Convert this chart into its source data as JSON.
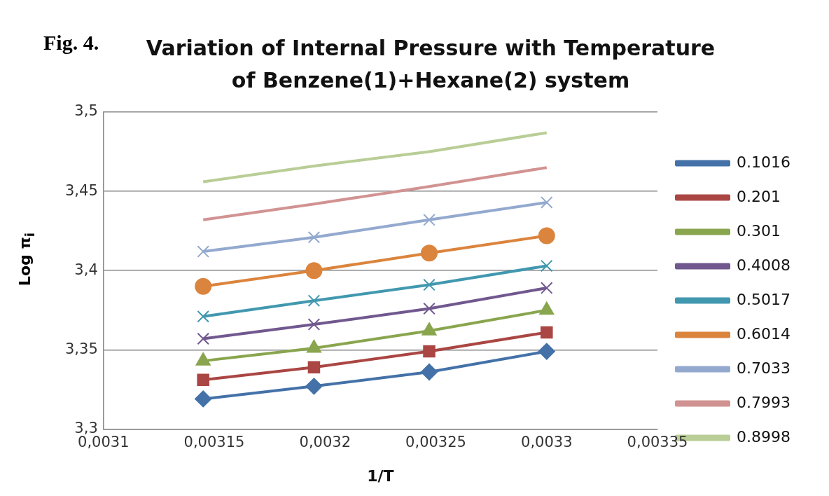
{
  "chart_data": {
    "type": "line",
    "title": "Variation of Internal  Pressure with Temperature of Benzene(1)+Hexane(2) system",
    "annotations": [
      "Fig. 4."
    ],
    "xlabel": "1/T",
    "ylabel": "Log π$_{i}$",
    "x": [
      0.003145,
      0.003195,
      0.003247,
      0.0033
    ],
    "xlim": [
      0.0031,
      0.00335
    ],
    "xticks": [
      {
        "value": 0.0031,
        "label": "0,0031"
      },
      {
        "value": 0.00315,
        "label": "0,00315"
      },
      {
        "value": 0.0032,
        "label": "0,0032"
      },
      {
        "value": 0.00325,
        "label": "0,00325"
      },
      {
        "value": 0.0033,
        "label": "0,0033"
      },
      {
        "value": 0.00335,
        "label": "0,00335"
      }
    ],
    "ylim": [
      3.3,
      3.5
    ],
    "yticks": [
      {
        "value": 3.3,
        "label": "3,3"
      },
      {
        "value": 3.35,
        "label": "3,35"
      },
      {
        "value": 3.4,
        "label": "3,4"
      },
      {
        "value": 3.45,
        "label": "3,45"
      },
      {
        "value": 3.5,
        "label": "3,5"
      }
    ],
    "grid": "y",
    "legend": "right",
    "line_style": "solid",
    "series": [
      {
        "name": "0.1016",
        "color": "#4472a8",
        "marker": "diamond",
        "values": [
          3.319,
          3.327,
          3.336,
          3.349
        ]
      },
      {
        "name": "0.201",
        "color": "#aa4643",
        "marker": "square",
        "values": [
          3.331,
          3.339,
          3.349,
          3.361
        ]
      },
      {
        "name": "0.301",
        "color": "#89a54e",
        "marker": "triangle",
        "values": [
          3.343,
          3.351,
          3.362,
          3.375
        ]
      },
      {
        "name": "0.4008",
        "color": "#71588f",
        "marker": "cross",
        "values": [
          3.357,
          3.366,
          3.376,
          3.389
        ]
      },
      {
        "name": "0.5017",
        "color": "#4198af",
        "marker": "cross",
        "values": [
          3.371,
          3.381,
          3.391,
          3.403
        ]
      },
      {
        "name": "0.6014",
        "color": "#db843d",
        "marker": "circle",
        "values": [
          3.39,
          3.4,
          3.411,
          3.422
        ]
      },
      {
        "name": "0.7033",
        "color": "#93a9cf",
        "marker": "cross",
        "values": [
          3.412,
          3.421,
          3.432,
          3.443
        ]
      },
      {
        "name": "0.7993",
        "color": "#d19392",
        "marker": "none",
        "values": [
          3.432,
          3.442,
          3.453,
          3.465
        ]
      },
      {
        "name": "0.8998",
        "color": "#b9cd96",
        "marker": "none",
        "values": [
          3.456,
          3.466,
          3.475,
          3.487
        ]
      }
    ]
  }
}
